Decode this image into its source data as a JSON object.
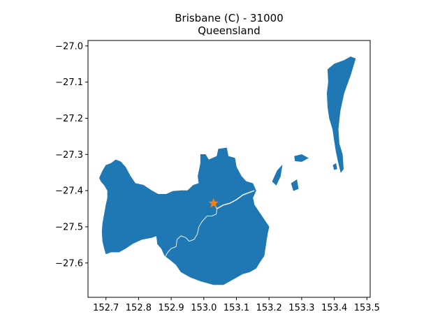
{
  "title": {
    "line1": "Brisbane (C) - 31000",
    "line2": "Queensland"
  },
  "chart_data": {
    "type": "map",
    "xlim": [
      152.645,
      153.51
    ],
    "ylim": [
      -27.695,
      -26.985
    ],
    "x_ticks": [
      152.7,
      152.8,
      152.9,
      153.0,
      153.1,
      153.2,
      153.3,
      153.4,
      153.5
    ],
    "x_tick_labels": [
      "152.7",
      "152.8",
      "152.9",
      "153.0",
      "153.1",
      "153.2",
      "153.3",
      "153.4",
      "153.5"
    ],
    "y_ticks": [
      -27.0,
      -27.1,
      -27.2,
      -27.3,
      -27.4,
      -27.5,
      -27.6
    ],
    "y_tick_labels": [
      "−27.0",
      "−27.1",
      "−27.2",
      "−27.3",
      "−27.4",
      "−27.5",
      "−27.6"
    ],
    "grid": false,
    "colors": {
      "region_fill": "#1f77b4",
      "marker": "#ff7f0e",
      "river": "#ffffff"
    },
    "marker": {
      "lon": 153.03,
      "lat": -27.435,
      "shape": "star"
    },
    "region_polygons": [
      [
        [
          152.885,
          -27.41
        ],
        [
          152.905,
          -27.402
        ],
        [
          152.93,
          -27.4
        ],
        [
          152.95,
          -27.4
        ],
        [
          152.968,
          -27.385
        ],
        [
          152.985,
          -27.38
        ],
        [
          152.982,
          -27.36
        ],
        [
          152.99,
          -27.325
        ],
        [
          152.99,
          -27.3
        ],
        [
          153.005,
          -27.3
        ],
        [
          153.015,
          -27.315
        ],
        [
          153.04,
          -27.305
        ],
        [
          153.045,
          -27.285
        ],
        [
          153.07,
          -27.282
        ],
        [
          153.075,
          -27.305
        ],
        [
          153.095,
          -27.31
        ],
        [
          153.1,
          -27.335
        ],
        [
          153.115,
          -27.36
        ],
        [
          153.13,
          -27.375
        ],
        [
          153.15,
          -27.38
        ],
        [
          153.16,
          -27.4
        ],
        [
          153.15,
          -27.42
        ],
        [
          153.155,
          -27.44
        ],
        [
          153.17,
          -27.46
        ],
        [
          153.185,
          -27.48
        ],
        [
          153.2,
          -27.5
        ],
        [
          153.195,
          -27.52
        ],
        [
          153.19,
          -27.55
        ],
        [
          153.185,
          -27.58
        ],
        [
          153.17,
          -27.6
        ],
        [
          153.16,
          -27.615
        ],
        [
          153.14,
          -27.625
        ],
        [
          153.12,
          -27.63
        ],
        [
          153.1,
          -27.64
        ],
        [
          153.08,
          -27.65
        ],
        [
          153.06,
          -27.66
        ],
        [
          153.03,
          -27.66
        ],
        [
          152.99,
          -27.65
        ],
        [
          152.96,
          -27.64
        ],
        [
          152.93,
          -27.625
        ],
        [
          152.915,
          -27.605
        ],
        [
          152.895,
          -27.59
        ],
        [
          152.88,
          -27.58
        ],
        [
          152.87,
          -27.56
        ],
        [
          152.858,
          -27.548
        ],
        [
          152.855,
          -27.525
        ],
        [
          152.855,
          -27.495
        ],
        [
          152.862,
          -27.46
        ],
        [
          152.872,
          -27.43
        ],
        [
          152.88,
          -27.415
        ]
      ],
      [
        [
          152.68,
          -27.365
        ],
        [
          152.69,
          -27.345
        ],
        [
          152.7,
          -27.33
        ],
        [
          152.715,
          -27.325
        ],
        [
          152.73,
          -27.315
        ],
        [
          152.745,
          -27.32
        ],
        [
          152.76,
          -27.335
        ],
        [
          152.775,
          -27.36
        ],
        [
          152.79,
          -27.38
        ],
        [
          152.815,
          -27.385
        ],
        [
          152.84,
          -27.4
        ],
        [
          152.86,
          -27.41
        ],
        [
          152.885,
          -27.41
        ],
        [
          152.88,
          -27.415
        ],
        [
          152.872,
          -27.43
        ],
        [
          152.862,
          -27.46
        ],
        [
          152.855,
          -27.495
        ],
        [
          152.855,
          -27.525
        ],
        [
          152.84,
          -27.53
        ],
        [
          152.81,
          -27.535
        ],
        [
          152.785,
          -27.545
        ],
        [
          152.76,
          -27.56
        ],
        [
          152.74,
          -27.57
        ],
        [
          152.715,
          -27.57
        ],
        [
          152.7,
          -27.575
        ],
        [
          152.695,
          -27.56
        ],
        [
          152.69,
          -27.54
        ],
        [
          152.688,
          -27.515
        ],
        [
          152.69,
          -27.49
        ],
        [
          152.695,
          -27.465
        ],
        [
          152.7,
          -27.44
        ],
        [
          152.705,
          -27.42
        ],
        [
          152.705,
          -27.4
        ],
        [
          152.695,
          -27.385
        ],
        [
          152.685,
          -27.375
        ]
      ],
      [
        [
          153.21,
          -27.375
        ],
        [
          153.225,
          -27.345
        ],
        [
          153.24,
          -27.33
        ],
        [
          153.235,
          -27.36
        ],
        [
          153.222,
          -27.385
        ]
      ],
      [
        [
          153.278,
          -27.305
        ],
        [
          153.3,
          -27.3
        ],
        [
          153.32,
          -27.31
        ],
        [
          153.3,
          -27.32
        ],
        [
          153.28,
          -27.318
        ]
      ],
      [
        [
          153.268,
          -27.38
        ],
        [
          153.285,
          -27.37
        ],
        [
          153.29,
          -27.395
        ],
        [
          153.275,
          -27.4
        ]
      ],
      [
        [
          153.38,
          -27.065
        ],
        [
          153.4,
          -27.05
        ],
        [
          153.43,
          -27.04
        ],
        [
          153.45,
          -27.03
        ],
        [
          153.465,
          -27.035
        ],
        [
          153.45,
          -27.08
        ],
        [
          153.43,
          -27.13
        ],
        [
          153.418,
          -27.18
        ],
        [
          153.412,
          -27.23
        ],
        [
          153.415,
          -27.27
        ],
        [
          153.425,
          -27.3
        ],
        [
          153.428,
          -27.34
        ],
        [
          153.42,
          -27.35
        ],
        [
          153.412,
          -27.32
        ],
        [
          153.405,
          -27.29
        ],
        [
          153.4,
          -27.26
        ],
        [
          153.395,
          -27.23
        ],
        [
          153.385,
          -27.2
        ],
        [
          153.38,
          -27.17
        ],
        [
          153.378,
          -27.13
        ],
        [
          153.382,
          -27.1
        ]
      ],
      [
        [
          153.396,
          -27.33
        ],
        [
          153.405,
          -27.325
        ],
        [
          153.408,
          -27.34
        ],
        [
          153.4,
          -27.342
        ]
      ]
    ],
    "river_line": [
      [
        153.03,
        -27.435
      ],
      [
        153.04,
        -27.45
      ],
      [
        153.038,
        -27.465
      ],
      [
        153.025,
        -27.47
      ],
      [
        153.01,
        -27.47
      ],
      [
        152.995,
        -27.485
      ],
      [
        152.985,
        -27.5
      ],
      [
        152.98,
        -27.52
      ],
      [
        152.97,
        -27.535
      ],
      [
        152.955,
        -27.54
      ],
      [
        152.945,
        -27.53
      ],
      [
        152.93,
        -27.525
      ],
      [
        152.918,
        -27.535
      ],
      [
        152.915,
        -27.555
      ],
      [
        152.9,
        -27.56
      ],
      [
        152.89,
        -27.57
      ],
      [
        152.88,
        -27.585
      ],
      [
        152.875,
        -27.605
      ]
    ],
    "river_mouth": [
      [
        153.04,
        -27.45
      ],
      [
        153.06,
        -27.44
      ],
      [
        153.08,
        -27.435
      ],
      [
        153.1,
        -27.425
      ],
      [
        153.12,
        -27.412
      ],
      [
        153.14,
        -27.405
      ],
      [
        153.155,
        -27.4
      ]
    ]
  }
}
